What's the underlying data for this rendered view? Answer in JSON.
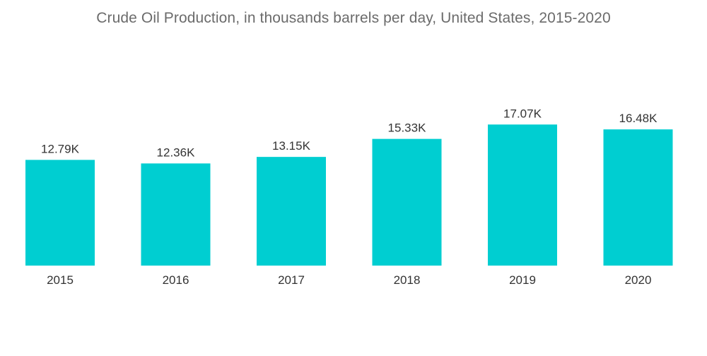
{
  "chart_data": {
    "type": "bar",
    "title": "Crude Oil Production, in thousands barrels per day, United States, 2015-2020",
    "xlabel": "",
    "ylabel": "",
    "categories": [
      "2015",
      "2016",
      "2017",
      "2018",
      "2019",
      "2020"
    ],
    "values": [
      12.79,
      12.36,
      13.15,
      15.33,
      17.07,
      16.48
    ],
    "data_labels": [
      "12.79K",
      "12.36K",
      "13.15K",
      "15.33K",
      "17.07K",
      "16.48K"
    ],
    "ylim": [
      0,
      17.5
    ],
    "grid": false,
    "legend": "none",
    "bar_color": "#00CED1",
    "text_color": "#333333",
    "title_color": "#6b6b6b"
  }
}
